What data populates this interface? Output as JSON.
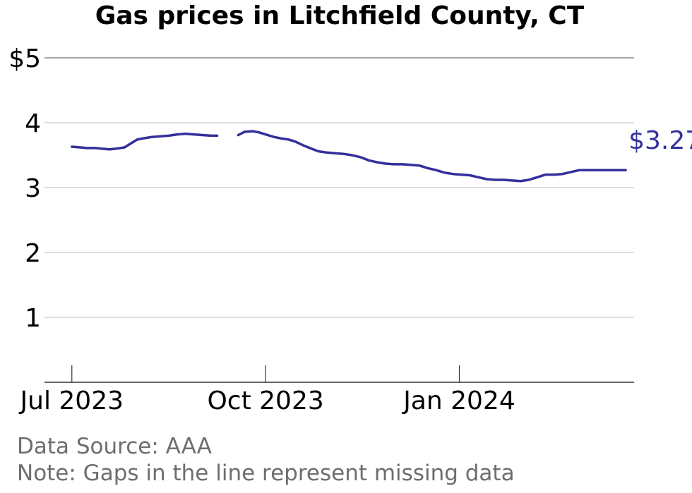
{
  "chart_data": {
    "type": "line",
    "title": "Gas prices in Litchfield County, CT",
    "xlabel": "",
    "ylabel": "",
    "x_range": [
      "2023-06-18",
      "2024-03-24"
    ],
    "ylim": [
      0,
      5
    ],
    "y_ticks": [
      1,
      2,
      3,
      4,
      5
    ],
    "y_tick_labels": [
      "1",
      "2",
      "3",
      "4",
      "$5"
    ],
    "x_ticks": [
      "2023-07-01",
      "2023-10-01",
      "2024-01-01"
    ],
    "x_tick_labels": [
      "Jul 2023",
      "Oct 2023",
      "Jan 2024"
    ],
    "grid": true,
    "line_color": "#332f9b",
    "end_label": "$3.27",
    "series": [
      {
        "segments": [
          [
            [
              "2023-07-01",
              3.63
            ],
            [
              "2023-07-05",
              3.62
            ],
            [
              "2023-07-08",
              3.61
            ],
            [
              "2023-07-12",
              3.61
            ],
            [
              "2023-07-15",
              3.6
            ],
            [
              "2023-07-19",
              3.59
            ],
            [
              "2023-07-22",
              3.6
            ],
            [
              "2023-07-26",
              3.62
            ],
            [
              "2023-07-29",
              3.68
            ],
            [
              "2023-08-01",
              3.74
            ],
            [
              "2023-08-04",
              3.76
            ],
            [
              "2023-08-08",
              3.78
            ],
            [
              "2023-08-12",
              3.79
            ],
            [
              "2023-08-16",
              3.8
            ],
            [
              "2023-08-20",
              3.82
            ],
            [
              "2023-08-24",
              3.83
            ],
            [
              "2023-08-28",
              3.82
            ],
            [
              "2023-09-01",
              3.81
            ],
            [
              "2023-09-05",
              3.8
            ],
            [
              "2023-09-08",
              3.8
            ]
          ],
          [
            [
              "2023-09-18",
              3.81
            ],
            [
              "2023-09-21",
              3.86
            ],
            [
              "2023-09-25",
              3.87
            ],
            [
              "2023-09-28",
              3.85
            ],
            [
              "2023-10-02",
              3.81
            ],
            [
              "2023-10-05",
              3.78
            ],
            [
              "2023-10-08",
              3.76
            ],
            [
              "2023-10-12",
              3.74
            ],
            [
              "2023-10-15",
              3.71
            ],
            [
              "2023-10-19",
              3.65
            ],
            [
              "2023-10-22",
              3.61
            ],
            [
              "2023-10-26",
              3.56
            ],
            [
              "2023-10-30",
              3.54
            ],
            [
              "2023-11-03",
              3.53
            ],
            [
              "2023-11-07",
              3.52
            ],
            [
              "2023-11-11",
              3.5
            ],
            [
              "2023-11-15",
              3.47
            ],
            [
              "2023-11-19",
              3.42
            ],
            [
              "2023-11-23",
              3.39
            ],
            [
              "2023-11-27",
              3.37
            ],
            [
              "2023-12-01",
              3.36
            ],
            [
              "2023-12-05",
              3.36
            ],
            [
              "2023-12-09",
              3.35
            ],
            [
              "2023-12-13",
              3.34
            ],
            [
              "2023-12-17",
              3.3
            ],
            [
              "2023-12-21",
              3.27
            ],
            [
              "2023-12-25",
              3.23
            ],
            [
              "2023-12-29",
              3.21
            ],
            [
              "2024-01-02",
              3.2
            ],
            [
              "2024-01-06",
              3.19
            ],
            [
              "2024-01-10",
              3.16
            ],
            [
              "2024-01-14",
              3.13
            ],
            [
              "2024-01-18",
              3.12
            ],
            [
              "2024-01-22",
              3.12
            ],
            [
              "2024-01-26",
              3.11
            ],
            [
              "2024-01-30",
              3.1
            ],
            [
              "2024-02-03",
              3.12
            ],
            [
              "2024-02-07",
              3.16
            ],
            [
              "2024-02-11",
              3.2
            ],
            [
              "2024-02-15",
              3.2
            ],
            [
              "2024-02-19",
              3.21
            ],
            [
              "2024-02-23",
              3.24
            ],
            [
              "2024-02-27",
              3.27
            ],
            [
              "2024-03-02",
              3.27
            ],
            [
              "2024-03-06",
              3.27
            ],
            [
              "2024-03-10",
              3.27
            ],
            [
              "2024-03-14",
              3.27
            ],
            [
              "2024-03-18",
              3.27
            ],
            [
              "2024-03-20",
              3.27
            ]
          ]
        ]
      }
    ]
  },
  "footer": {
    "source": "Data Source: AAA",
    "note": "Note: Gaps in the line represent missing data"
  }
}
